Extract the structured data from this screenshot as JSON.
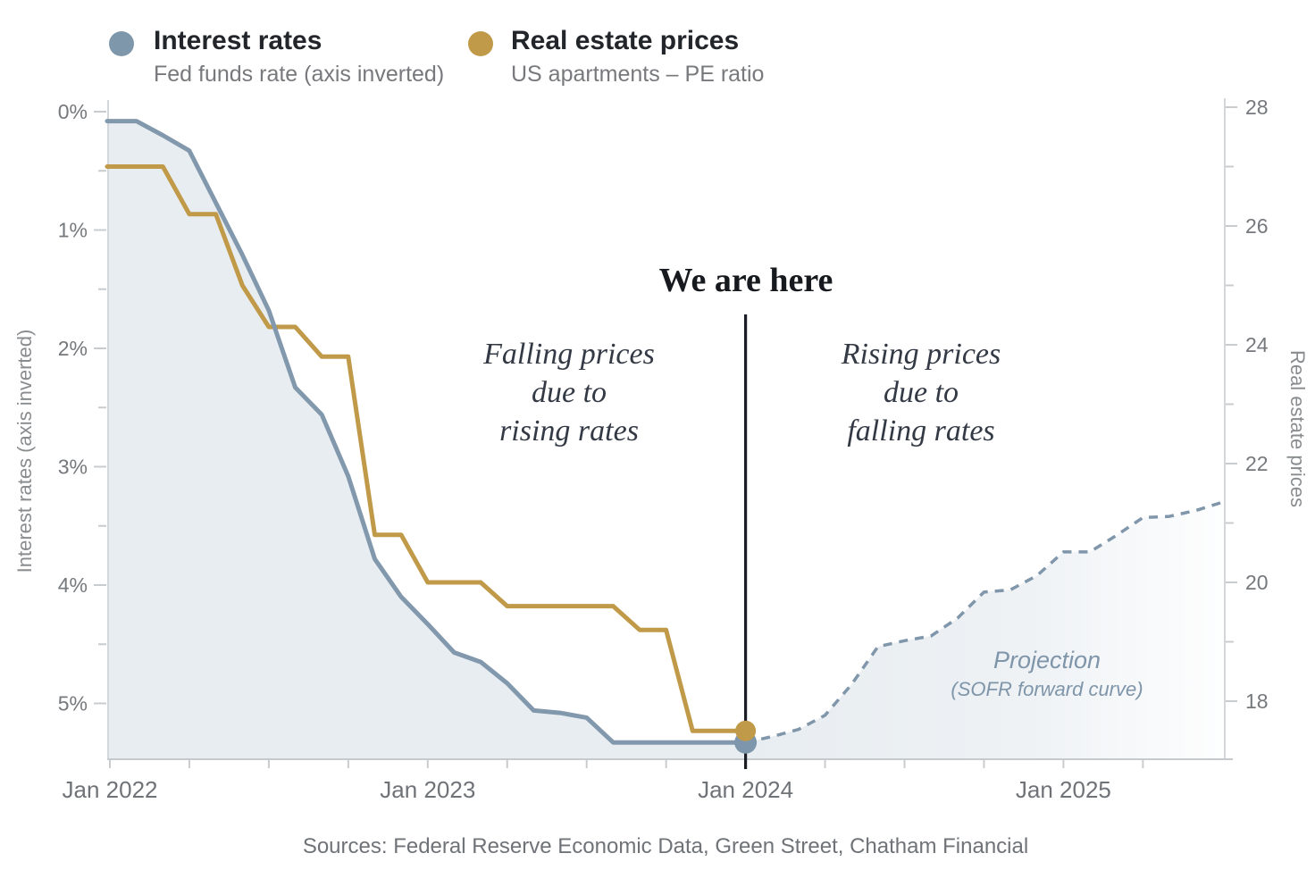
{
  "legend": {
    "interest": {
      "label": "Interest rates",
      "sublabel": "Fed funds rate (axis inverted)",
      "color": "#7e97ab"
    },
    "real_estate": {
      "label": "Real estate prices",
      "sublabel": "US apartments – PE ratio",
      "color": "#c09a49"
    }
  },
  "annotations": {
    "we_are_here": "We are here",
    "falling": [
      "Falling prices",
      "due to",
      "rising rates"
    ],
    "rising": [
      "Rising prices",
      "due to",
      "falling rates"
    ],
    "projection_label": "Projection",
    "projection_sub": "(SOFR forward curve)"
  },
  "source": "Sources: Federal Reserve Economic Data, Green Street, Chatham Financial",
  "colors": {
    "interest_line": "#8298ac",
    "interest_dot": "#7d96ab",
    "real_estate_line": "#c09a49",
    "area_fill": "#e8edf1",
    "projection_line": "#8096ab",
    "event_line": "#1a1e24",
    "axis_line": "#d4d7da",
    "bottom_axis_line": "#c7cacd",
    "tick_mark": "#c9cccf"
  },
  "chart_data": {
    "type": "line",
    "title": "",
    "x_axis": {
      "unit": "months since Jan 2022",
      "tick_interval_months": 3,
      "labels": [
        {
          "text": "Jan 2022",
          "m": 0
        },
        {
          "text": "Jan 2023",
          "m": 12
        },
        {
          "text": "Jan 2024",
          "m": 24
        },
        {
          "text": "Jan 2025",
          "m": 36
        }
      ]
    },
    "left_axis": {
      "title": "Interest rates (axis inverted)",
      "inverted": true,
      "range": [
        0,
        5.47
      ],
      "tick_labels": [
        "0%",
        "1%",
        "2%",
        "3%",
        "4%",
        "5%"
      ],
      "tick_values": [
        0,
        1,
        2,
        3,
        4,
        5
      ],
      "minor_tick_values": [
        0.5,
        1.5,
        2.5,
        3.5,
        4.5
      ]
    },
    "right_axis": {
      "title": "Real estate prices",
      "range": [
        28,
        17.0
      ],
      "tick_values": [
        28,
        26,
        24,
        22,
        20,
        18
      ],
      "minor_tick_values": [
        27,
        25,
        23,
        21,
        19
      ]
    },
    "series": [
      {
        "name": "Interest rates",
        "subtitle": "Fed funds rate (axis inverted)",
        "axis": "left",
        "style": "solid",
        "area": true,
        "color": "#8298ac",
        "points": [
          [
            0,
            0.08
          ],
          [
            1,
            0.08
          ],
          [
            2,
            0.2
          ],
          [
            3,
            0.33
          ],
          [
            4,
            0.77
          ],
          [
            5,
            1.21
          ],
          [
            6,
            1.68
          ],
          [
            7,
            2.33
          ],
          [
            8,
            2.56
          ],
          [
            9,
            3.08
          ],
          [
            10,
            3.78
          ],
          [
            11,
            4.1
          ],
          [
            12,
            4.33
          ],
          [
            13,
            4.57
          ],
          [
            14,
            4.65
          ],
          [
            15,
            4.83
          ],
          [
            16,
            5.06
          ],
          [
            17,
            5.08
          ],
          [
            18,
            5.12
          ],
          [
            19,
            5.33
          ],
          [
            20,
            5.33
          ],
          [
            21,
            5.33
          ],
          [
            22,
            5.33
          ],
          [
            23,
            5.33
          ],
          [
            24,
            5.33
          ]
        ]
      },
      {
        "name": "Real estate prices",
        "subtitle": "US apartments – PE ratio",
        "axis": "right",
        "style": "solid",
        "area": false,
        "color": "#c09a49",
        "points": [
          [
            0,
            27.0
          ],
          [
            1,
            27.0
          ],
          [
            2,
            27.0
          ],
          [
            3,
            26.2
          ],
          [
            4,
            26.2
          ],
          [
            5,
            25.0
          ],
          [
            6,
            24.3
          ],
          [
            7,
            24.3
          ],
          [
            8,
            23.8
          ],
          [
            9,
            23.8
          ],
          [
            10,
            20.8
          ],
          [
            11,
            20.8
          ],
          [
            12,
            20.0
          ],
          [
            13,
            20.0
          ],
          [
            14,
            20.0
          ],
          [
            15,
            19.6
          ],
          [
            16,
            19.6
          ],
          [
            17,
            19.6
          ],
          [
            18,
            19.6
          ],
          [
            19,
            19.6
          ],
          [
            20,
            19.2
          ],
          [
            21,
            19.2
          ],
          [
            22,
            17.5
          ],
          [
            23,
            17.5
          ],
          [
            24,
            17.5
          ]
        ]
      },
      {
        "name": "Projection (SOFR forward curve)",
        "axis": "left",
        "style": "dashed",
        "area": true,
        "color": "#8096ab",
        "points": [
          [
            24,
            5.33
          ],
          [
            25,
            5.28
          ],
          [
            26,
            5.22
          ],
          [
            27,
            5.1
          ],
          [
            28,
            4.84
          ],
          [
            29,
            4.52
          ],
          [
            30,
            4.47
          ],
          [
            31,
            4.43
          ],
          [
            32,
            4.28
          ],
          [
            33,
            4.06
          ],
          [
            34,
            4.04
          ],
          [
            35,
            3.92
          ],
          [
            36,
            3.72
          ],
          [
            37,
            3.72
          ],
          [
            38,
            3.58
          ],
          [
            39,
            3.43
          ],
          [
            40,
            3.42
          ],
          [
            41,
            3.37
          ],
          [
            42,
            3.3
          ]
        ]
      }
    ],
    "markers": [
      {
        "series": "Interest rates",
        "m": 24,
        "value": 5.33,
        "axis": "left",
        "color": "#7d96ab",
        "r": 12.5
      },
      {
        "series": "Real estate prices",
        "m": 24,
        "value": 17.5,
        "axis": "right",
        "color": "#c09a49",
        "r": 11.5
      }
    ],
    "event_line": {
      "m": 24,
      "label": "We are here"
    },
    "legend_position": "top-left",
    "grid": false
  }
}
